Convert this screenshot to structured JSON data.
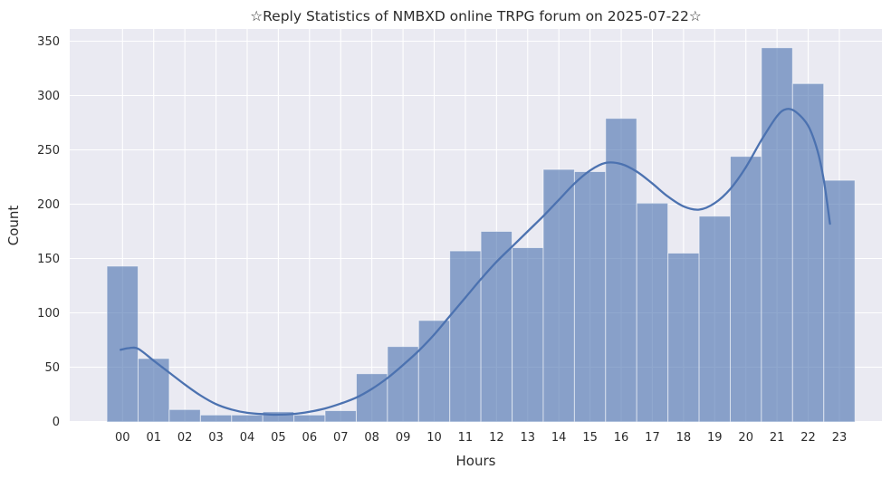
{
  "chart_data": {
    "type": "bar",
    "subtype": "histogram_with_kde",
    "title": "☆Reply Statistics of NMBXD online TRPG forum on 2025-07-22☆",
    "xlabel": "Hours",
    "ylabel": "Count",
    "categories": [
      "00",
      "01",
      "02",
      "03",
      "04",
      "05",
      "06",
      "07",
      "08",
      "09",
      "10",
      "11",
      "12",
      "13",
      "14",
      "15",
      "16",
      "17",
      "18",
      "19",
      "20",
      "21",
      "22",
      "23"
    ],
    "values": [
      143,
      58,
      11,
      6,
      6,
      9,
      6,
      10,
      44,
      69,
      93,
      157,
      175,
      160,
      232,
      230,
      279,
      201,
      155,
      189,
      244,
      344,
      311,
      222
    ],
    "ylim": [
      0,
      350
    ],
    "yticks": [
      0,
      50,
      100,
      150,
      200,
      250,
      300,
      350
    ],
    "grid": true,
    "legend": "none",
    "kde_points": [
      [
        -0.06,
        66
      ],
      [
        0.2,
        67.5
      ],
      [
        0.5,
        67
      ],
      [
        1.0,
        56
      ],
      [
        1.5,
        45
      ],
      [
        2.0,
        34
      ],
      [
        2.5,
        24
      ],
      [
        3.0,
        16
      ],
      [
        3.5,
        11
      ],
      [
        4.0,
        8
      ],
      [
        4.5,
        6.8
      ],
      [
        5.0,
        6.3
      ],
      [
        5.5,
        7
      ],
      [
        6.0,
        9
      ],
      [
        6.5,
        12
      ],
      [
        7.0,
        16.5
      ],
      [
        7.5,
        22
      ],
      [
        8.0,
        30
      ],
      [
        8.5,
        40
      ],
      [
        9.0,
        52
      ],
      [
        9.5,
        65
      ],
      [
        10.0,
        80
      ],
      [
        10.5,
        97
      ],
      [
        11.0,
        114
      ],
      [
        11.5,
        131
      ],
      [
        12.0,
        147
      ],
      [
        12.5,
        161
      ],
      [
        13.0,
        175
      ],
      [
        13.5,
        189
      ],
      [
        14.0,
        204
      ],
      [
        14.5,
        219
      ],
      [
        15.0,
        231
      ],
      [
        15.5,
        238
      ],
      [
        16.0,
        237
      ],
      [
        16.5,
        230
      ],
      [
        17.0,
        219
      ],
      [
        17.5,
        207
      ],
      [
        18.0,
        198
      ],
      [
        18.5,
        195
      ],
      [
        19.0,
        201
      ],
      [
        19.5,
        214
      ],
      [
        20.0,
        234
      ],
      [
        20.5,
        259
      ],
      [
        21.0,
        281
      ],
      [
        21.3,
        287.5
      ],
      [
        21.6,
        285
      ],
      [
        22.0,
        272
      ],
      [
        22.3,
        249
      ],
      [
        22.5,
        222
      ],
      [
        22.7,
        182
      ]
    ],
    "colors": {
      "plot_bg": "#eaeaf2",
      "grid_line": "#ffffff",
      "bar_fill": "#4c72b0",
      "bar_fill_opacity": "0.62",
      "bar_edge": "#ffffff",
      "kde_line": "#4c72b0",
      "text": "#2b2b2b"
    }
  }
}
